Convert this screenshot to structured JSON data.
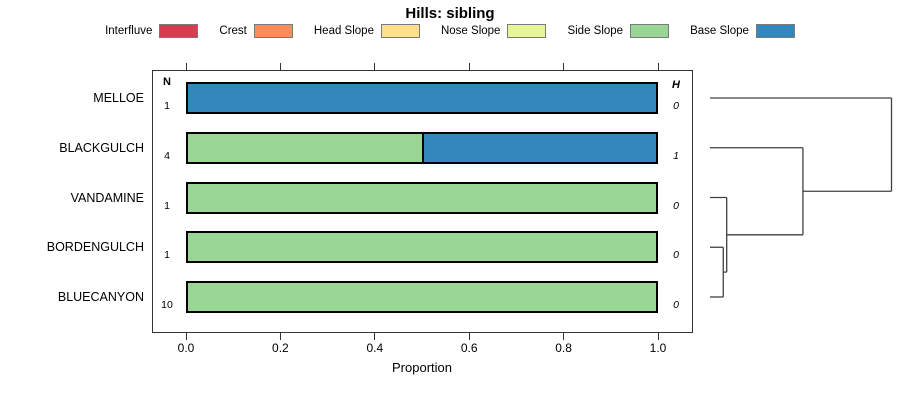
{
  "chart_data": {
    "type": "bar",
    "subtype": "horizontal-stacked-with-dendrogram",
    "title": "Hills: sibling",
    "xlabel": "Proportion",
    "xlim": [
      0,
      1
    ],
    "xticks": [
      0.0,
      0.2,
      0.4,
      0.6,
      0.8,
      1.0
    ],
    "grid": false,
    "legend_position": "top",
    "legend": [
      {
        "label": "Interfluve",
        "color": "#D53E4F"
      },
      {
        "label": "Crest",
        "color": "#FC8D59"
      },
      {
        "label": "Head Slope",
        "color": "#FEE08B"
      },
      {
        "label": "Nose Slope",
        "color": "#E6F598"
      },
      {
        "label": "Side Slope",
        "color": "#99D594"
      },
      {
        "label": "Base Slope",
        "color": "#3288BD"
      }
    ],
    "columns": {
      "left_header": "N",
      "right_header": "H"
    },
    "rows": [
      {
        "name": "MELLOE",
        "n": "1",
        "h": "0",
        "segments": [
          {
            "category": "Base Slope",
            "value": 1.0
          }
        ]
      },
      {
        "name": "BLACKGULCH",
        "n": "4",
        "h": "1",
        "segments": [
          {
            "category": "Side Slope",
            "value": 0.5
          },
          {
            "category": "Base Slope",
            "value": 0.5
          }
        ]
      },
      {
        "name": "VANDAMINE",
        "n": "1",
        "h": "0",
        "segments": [
          {
            "category": "Side Slope",
            "value": 1.0
          }
        ]
      },
      {
        "name": "BORDENGULCH",
        "n": "1",
        "h": "0",
        "segments": [
          {
            "category": "Side Slope",
            "value": 1.0
          }
        ]
      },
      {
        "name": "BLUECANYON",
        "n": "10",
        "h": "0",
        "segments": [
          {
            "category": "Side Slope",
            "value": 1.0
          }
        ]
      }
    ],
    "dendrogram": {
      "orientation": "right",
      "leaf_order": [
        "MELLOE",
        "BLACKGULCH",
        "VANDAMINE",
        "BORDENGULCH",
        "BLUECANYON"
      ],
      "merges": [
        {
          "id": "m0",
          "a": "BORDENGULCH",
          "b": "BLUECANYON",
          "height": 0.073
        },
        {
          "id": "m1",
          "a": "VANDAMINE",
          "b": "m0",
          "height": 0.092
        },
        {
          "id": "m2",
          "a": "BLACKGULCH",
          "b": "m1",
          "height": 0.512
        },
        {
          "id": "m3",
          "a": "MELLOE",
          "b": "m2",
          "height": 1.0
        }
      ]
    },
    "line_color": "#404040",
    "bar_border_color": "#000000"
  }
}
